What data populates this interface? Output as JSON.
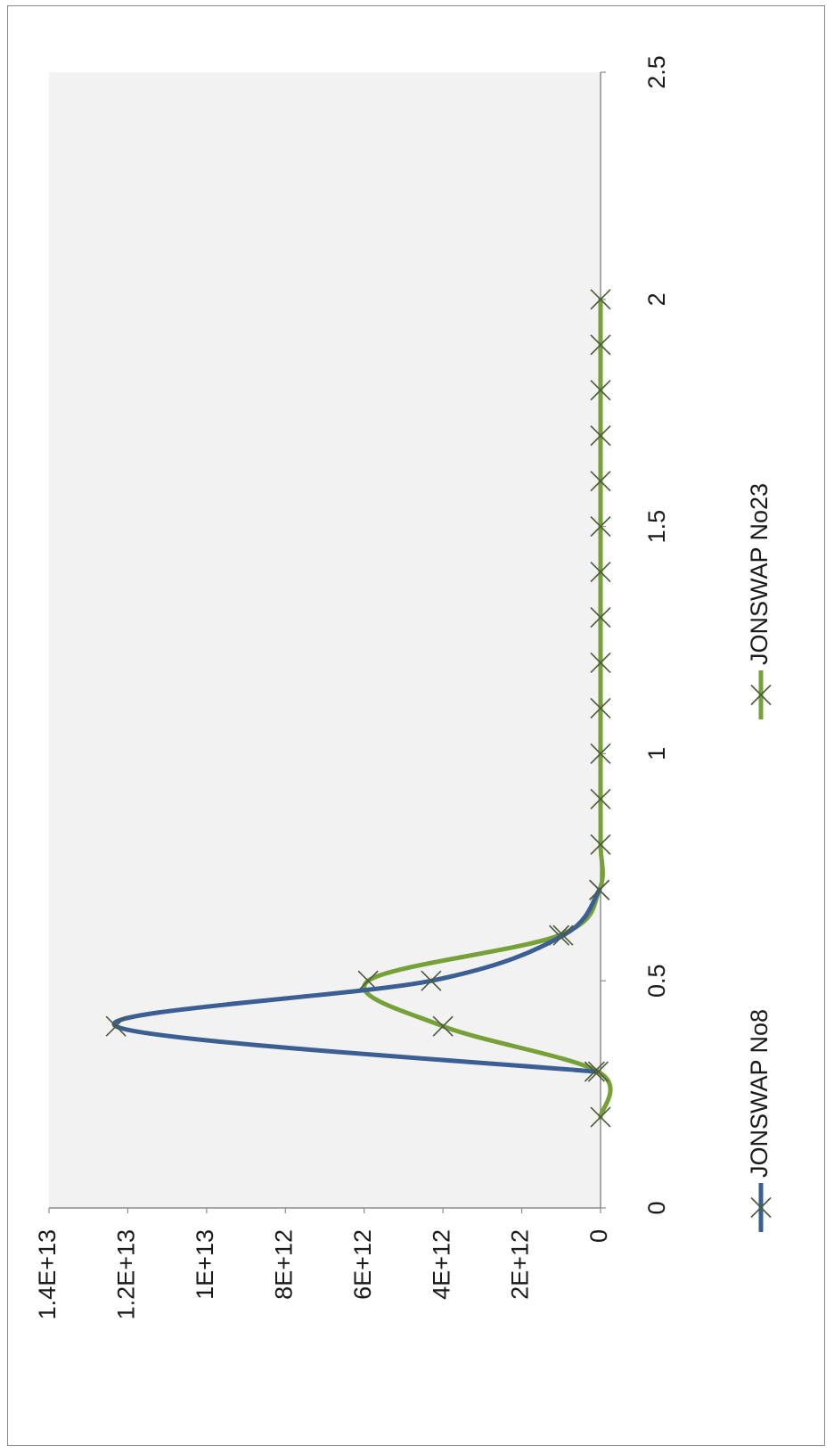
{
  "chart_data": {
    "type": "line",
    "orientation": "rotated-90-clockwise",
    "title": "",
    "xlabel": "",
    "ylabel": "",
    "xlim": [
      0,
      2.5
    ],
    "ylim": [
      0,
      14000000000000
    ],
    "x_ticks": [
      "0",
      "0.5",
      "1",
      "1.5",
      "2",
      "2.5"
    ],
    "y_ticks": [
      "0",
      "2E+12",
      "4E+12",
      "6E+12",
      "8E+12",
      "1E+13",
      "1.2E+13",
      "1.4E+13"
    ],
    "grid": false,
    "plot_background": "#f2f2f2",
    "legend_position": "bottom",
    "series": [
      {
        "name": "JONSWAP No8",
        "color": "#3b5f93",
        "marker": "x",
        "x": [
          0.3,
          0.4,
          0.5,
          0.6,
          0.7
        ],
        "y": [
          150000000000,
          12300000000000,
          4300000000000,
          950000000000,
          30000000000
        ]
      },
      {
        "name": "JONSWAP No23",
        "color": "#76a038",
        "marker": "x",
        "x": [
          0.2,
          0.3,
          0.4,
          0.5,
          0.6,
          0.7,
          0.8,
          0.9,
          1.0,
          1.1,
          1.2,
          1.3,
          1.4,
          1.5,
          1.6,
          1.7,
          1.8,
          1.9,
          2.0
        ],
        "y": [
          0,
          60000000000,
          4000000000000,
          5900000000000,
          1050000000000,
          30000000000,
          0,
          0,
          0,
          0,
          0,
          0,
          0,
          0,
          0,
          0,
          0,
          0,
          0
        ]
      }
    ]
  }
}
